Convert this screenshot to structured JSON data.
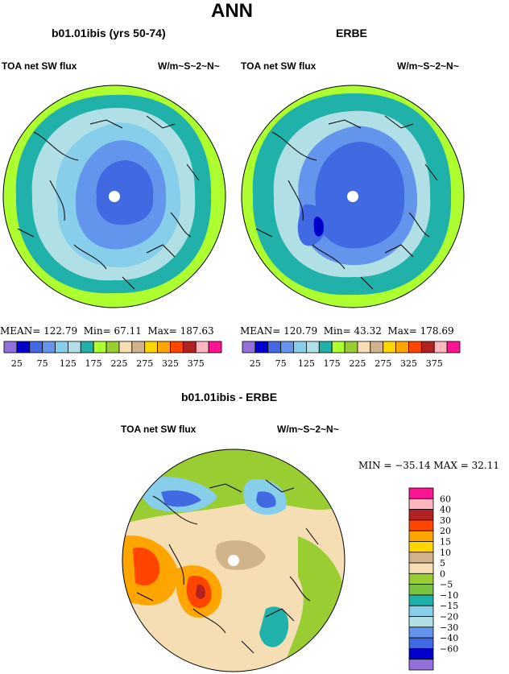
{
  "title": "ANN",
  "left_panel": {
    "subtitle": "b01.01ibis (yrs 50-74)",
    "variable": "TOA net SW flux",
    "units": "W/m~S~2~N~",
    "stats": {
      "mean_label": "MEAN=",
      "mean": "122.79",
      "min_label": "Min=",
      "min": "67.11",
      "max_label": "Max=",
      "max": "187.63"
    }
  },
  "right_panel": {
    "subtitle": "ERBE",
    "variable": "TOA net SW flux",
    "units": "W/m~S~2~N~",
    "stats": {
      "mean_label": "MEAN=",
      "mean": "120.79",
      "min_label": "Min=",
      "min": "43.32",
      "max_label": "Max=",
      "max": "178.69"
    }
  },
  "diff_panel": {
    "subtitle": "b01.01ibis - ERBE",
    "variable": "TOA net SW flux",
    "units": "W/m~S~2~N~",
    "stats_text": "MIN = −35.14 MAX =  32.11"
  },
  "abs_colorbar": {
    "colors": [
      "#9370db",
      "#0000cd",
      "#4169e1",
      "#6495ed",
      "#87ceeb",
      "#b0e0e6",
      "#20b2aa",
      "#adff2f",
      "#9acd32",
      "#f5deb3",
      "#d2b48c",
      "#ffd700",
      "#ffa500",
      "#ff4500",
      "#b22222",
      "#ffb6c1",
      "#ff1493"
    ],
    "labels": [
      "25",
      "75",
      "125",
      "175",
      "225",
      "275",
      "325",
      "375"
    ]
  },
  "diff_colorbar": {
    "colors": [
      "#ff1493",
      "#ffb6c1",
      "#b22222",
      "#ff4500",
      "#ffa500",
      "#ffd700",
      "#d2b48c",
      "#f5deb3",
      "#9acd32",
      "#7cc242",
      "#20b2aa",
      "#87ceeb",
      "#b0e0e6",
      "#6495ed",
      "#4169e1",
      "#0000cd",
      "#9370db"
    ],
    "labels": [
      "60",
      "40",
      "30",
      "20",
      "15",
      "10",
      "5",
      "0",
      "−5",
      "−10",
      "−15",
      "−20",
      "−30",
      "−40",
      "−60"
    ]
  }
}
